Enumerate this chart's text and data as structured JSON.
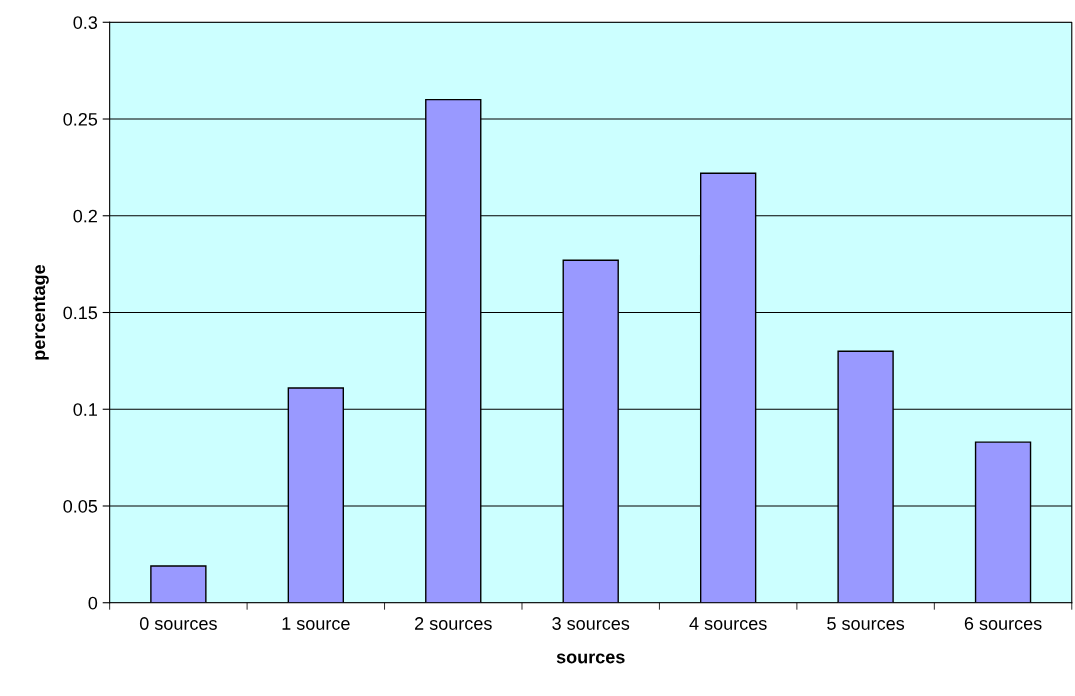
{
  "chart_data": {
    "type": "bar",
    "xlabel": "sources",
    "ylabel": "percentage",
    "categories": [
      "0 sources",
      "1 source",
      "2 sources",
      "3 sources",
      "4 sources",
      "5 sources",
      "6 sources"
    ],
    "values": [
      0.019,
      0.111,
      0.26,
      0.177,
      0.222,
      0.13,
      0.083
    ],
    "color": "#9999ff",
    "ylim": [
      0,
      0.3
    ],
    "yticks": [
      0,
      0.05,
      0.1,
      0.15,
      0.2,
      0.25,
      0.3
    ],
    "grid": "y",
    "legend": false
  }
}
